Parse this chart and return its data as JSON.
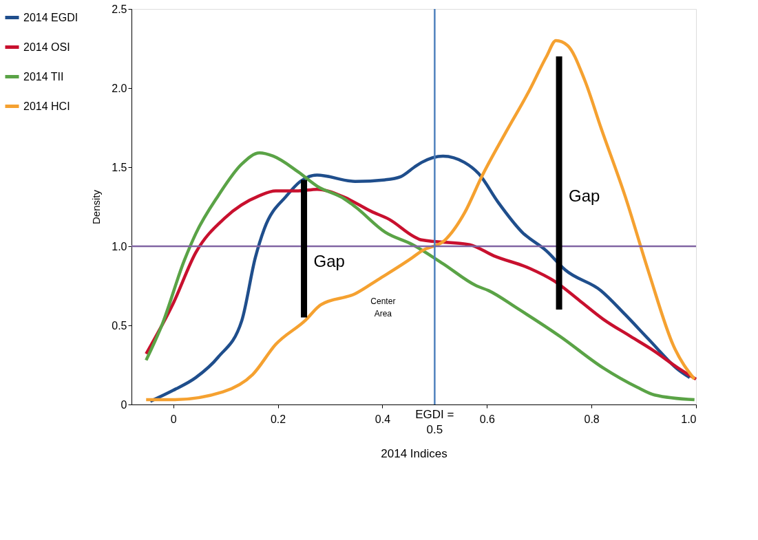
{
  "chart_data": {
    "type": "line",
    "xlabel": "2014 Indices",
    "ylabel": "Density",
    "xlim": [
      -0.08,
      1.0
    ],
    "ylim": [
      0,
      2.5
    ],
    "xticks": [
      {
        "value": 0,
        "label": "0"
      },
      0.2,
      0.4,
      0.6,
      0.8,
      {
        "value": 1.0,
        "label": "1.0"
      }
    ],
    "yticks": [
      {
        "value": 0,
        "label": "0"
      },
      0.5,
      {
        "value": 1.0,
        "label": "1.0"
      },
      1.5,
      {
        "value": 2.0,
        "label": "2.0"
      },
      2.5
    ],
    "grid": false,
    "legend": "left",
    "marker": "none",
    "line_style": "solid",
    "series": [
      {
        "name": "2014 EGDI",
        "color": "#1f4e8c",
        "x": [
          -0.044,
          0,
          0.043,
          0.086,
          0.131,
          0.157,
          0.174,
          0.217,
          0.243,
          0.275,
          0.348,
          0.405,
          0.435,
          0.461,
          0.475,
          0.516,
          0.557,
          0.584,
          0.621,
          0.667,
          0.714,
          0.75,
          0.818,
          0.864,
          0.91,
          0.966,
          0.988
        ],
        "values": [
          0.02,
          0.09,
          0.17,
          0.3,
          0.53,
          0.93,
          1.11,
          1.32,
          1.41,
          1.45,
          1.41,
          1.42,
          1.44,
          1.5,
          1.53,
          1.57,
          1.53,
          1.46,
          1.28,
          1.09,
          0.97,
          0.85,
          0.72,
          0.57,
          0.41,
          0.22,
          0.17
        ]
      },
      {
        "name": "2014 OSI",
        "color": "#c8102e",
        "x": [
          -0.052,
          0,
          0.043,
          0.099,
          0.165,
          0.196,
          0.239,
          0.275,
          0.327,
          0.379,
          0.413,
          0.461,
          0.475,
          0.567,
          0.613,
          0.682,
          0.729,
          0.776,
          0.822,
          0.875,
          0.919,
          0.966,
          1.0
        ],
        "values": [
          0.32,
          0.64,
          0.96,
          1.18,
          1.32,
          1.35,
          1.35,
          1.36,
          1.31,
          1.22,
          1.17,
          1.06,
          1.04,
          1.01,
          0.94,
          0.86,
          0.78,
          0.66,
          0.54,
          0.43,
          0.34,
          0.23,
          0.16
        ]
      },
      {
        "name": "2014 TII",
        "color": "#5aa346",
        "x": [
          -0.052,
          -0.022,
          0.021,
          0.043,
          0.086,
          0.131,
          0.165,
          0.191,
          0.239,
          0.275,
          0.327,
          0.348,
          0.405,
          0.458,
          0.516,
          0.58,
          0.603,
          0.657,
          0.74,
          0.823,
          0.887,
          0.921,
          0.997
        ],
        "values": [
          0.28,
          0.5,
          0.91,
          1.08,
          1.32,
          1.52,
          1.59,
          1.57,
          1.47,
          1.38,
          1.3,
          1.25,
          1.09,
          1.01,
          0.89,
          0.75,
          0.72,
          0.61,
          0.43,
          0.23,
          0.11,
          0.06,
          0.03
        ]
      },
      {
        "name": "2014 HCI",
        "color": "#f5a130",
        "x": [
          -0.052,
          0,
          0.095,
          0.152,
          0.196,
          0.252,
          0.282,
          0.348,
          0.392,
          0.458,
          0.475,
          0.52,
          0.557,
          0.59,
          0.636,
          0.682,
          0.714,
          0.732,
          0.754,
          0.787,
          0.818,
          0.864,
          0.91,
          0.957,
          0.997
        ],
        "values": [
          0.03,
          0.03,
          0.08,
          0.19,
          0.38,
          0.53,
          0.63,
          0.7,
          0.79,
          0.93,
          0.97,
          1.04,
          1.21,
          1.44,
          1.72,
          1.99,
          2.2,
          2.3,
          2.27,
          2.05,
          1.75,
          1.32,
          0.83,
          0.37,
          0.16
        ]
      },
      {
        "color": "#000000",
        "x": [
          0.25,
          0.25
        ],
        "values": [
          0.55,
          1.42
        ]
      },
      {
        "color": "#000000",
        "x": [
          0.738,
          0.738
        ],
        "values": [
          0.6,
          2.2
        ]
      }
    ],
    "ref_lines": [
      {
        "axis": "y",
        "value": 1.0,
        "color": "#8064a2"
      },
      {
        "axis": "x",
        "value": 0.5,
        "color": "#4f81bd"
      }
    ],
    "annotations": [
      "Gap",
      "Gap",
      "Center\nArea",
      "EGDI =\n0.5"
    ]
  }
}
